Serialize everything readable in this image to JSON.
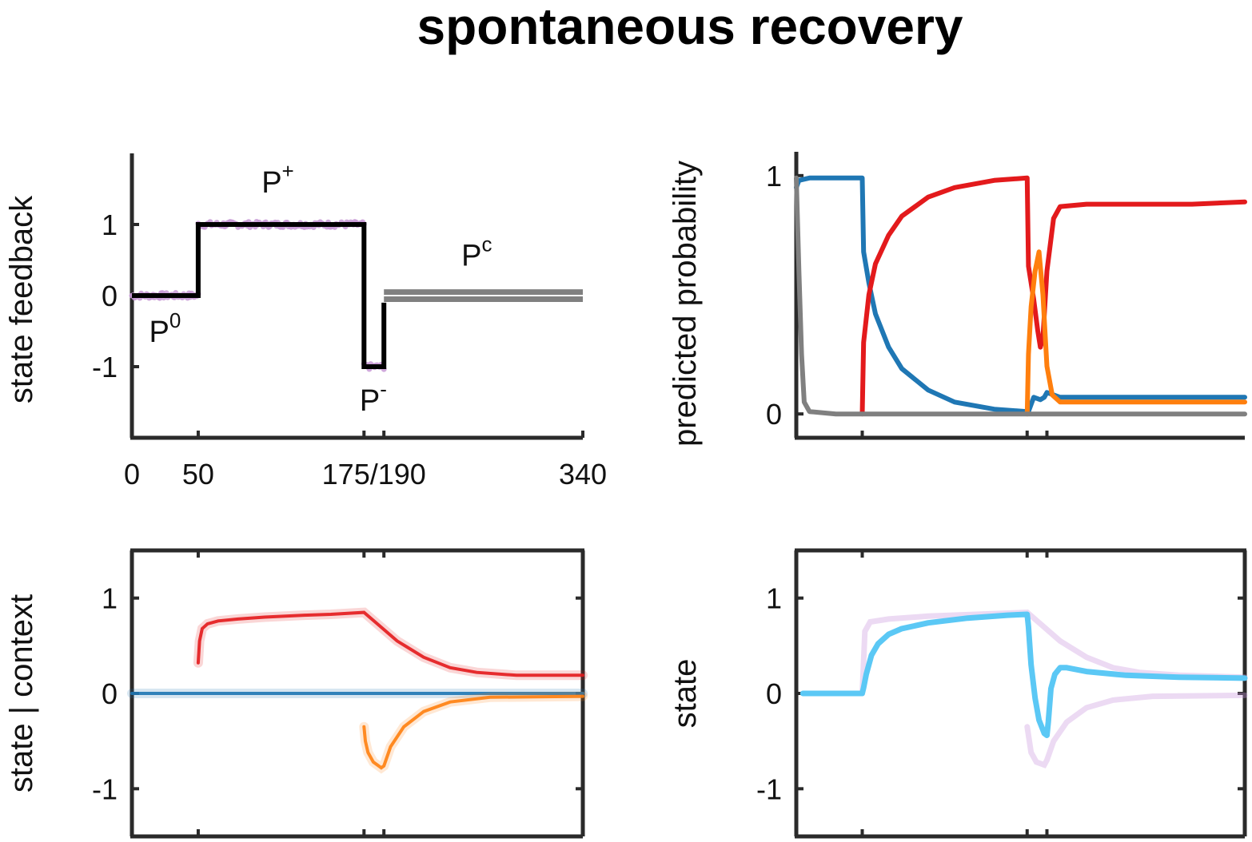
{
  "figure_title": "spontaneous recovery",
  "colors": {
    "axis": "#2a2a2a",
    "paradigm": "#000000",
    "paradigm_gray": "#808080",
    "feedback_dots": "#c89ad6",
    "blue": "#1f77b4",
    "red": "#e31a1c",
    "orange": "#ff7f0e",
    "gray": "#808080",
    "light_blue": "#5bc8f5",
    "purple": "#c994dd"
  },
  "chart_data": [
    {
      "id": "feedback",
      "type": "line",
      "ylabel": "state feedback",
      "xlim": [
        0,
        340
      ],
      "ylim": [
        -2,
        2
      ],
      "yticks": [
        1,
        0,
        -1
      ],
      "ytick_labels": [
        "1",
        "0",
        "-1"
      ],
      "xticks": [
        0,
        50,
        175,
        190,
        340
      ],
      "xtick_labels": [
        {
          "at": 0,
          "text": "0"
        },
        {
          "at": 50,
          "text": "50"
        },
        {
          "at": 182.5,
          "text": "175/190"
        },
        {
          "at": 340,
          "text": "340"
        }
      ],
      "phase_labels": [
        {
          "name": "P",
          "sup": "0",
          "x": 25,
          "y": -0.65
        },
        {
          "name": "P",
          "sup": "+",
          "x": 110,
          "y": 1.45
        },
        {
          "name": "P",
          "sup": "-",
          "x": 182,
          "y": -1.62
        },
        {
          "name": "P",
          "sup": "c",
          "x": 260,
          "y": 0.42
        }
      ],
      "series": [
        {
          "style": "paradigm",
          "x": [
            0,
            50,
            50,
            175,
            175,
            182,
            182,
            190,
            190
          ],
          "y": [
            0,
            0,
            1,
            1,
            -1,
            -1,
            -1,
            -1,
            -0.1
          ]
        },
        {
          "style": "channel",
          "x": [
            190,
            340
          ],
          "y": [
            0.05,
            0.05
          ]
        },
        {
          "style": "channel",
          "x": [
            190,
            340
          ],
          "y": [
            -0.05,
            -0.05
          ]
        },
        {
          "style": "noisy-feedback",
          "segments": [
            {
              "x": [
                0,
                50
              ],
              "y": 0
            },
            {
              "x": [
                50,
                175
              ],
              "y": 1
            },
            {
              "x": [
                175,
                190
              ],
              "y": -1
            }
          ]
        }
      ]
    },
    {
      "id": "probability",
      "type": "line",
      "ylabel": "predicted probability",
      "xlim": [
        0,
        340
      ],
      "ylim": [
        -0.1,
        1.1
      ],
      "yticks": [
        1,
        0
      ],
      "ytick_labels": [
        "1",
        "0"
      ],
      "xticks": [
        50,
        175,
        190
      ],
      "series": [
        {
          "color": "blue",
          "points": [
            [
              0,
              0.95
            ],
            [
              2,
              0.98
            ],
            [
              10,
              0.99
            ],
            [
              50,
              0.99
            ],
            [
              51,
              0.68
            ],
            [
              55,
              0.55
            ],
            [
              60,
              0.42
            ],
            [
              70,
              0.28
            ],
            [
              80,
              0.19
            ],
            [
              100,
              0.1
            ],
            [
              120,
              0.05
            ],
            [
              150,
              0.02
            ],
            [
              175,
              0.01
            ],
            [
              176,
              0.01
            ],
            [
              180,
              0.07
            ],
            [
              185,
              0.06
            ],
            [
              188,
              0.07
            ],
            [
              190,
              0.09
            ],
            [
              200,
              0.07
            ],
            [
              340,
              0.07
            ]
          ]
        },
        {
          "color": "red",
          "points": [
            [
              50,
              0
            ],
            [
              51,
              0.3
            ],
            [
              55,
              0.5
            ],
            [
              60,
              0.63
            ],
            [
              70,
              0.75
            ],
            [
              80,
              0.83
            ],
            [
              100,
              0.91
            ],
            [
              120,
              0.95
            ],
            [
              150,
              0.98
            ],
            [
              175,
              0.99
            ],
            [
              176,
              0.62
            ],
            [
              180,
              0.48
            ],
            [
              183,
              0.35
            ],
            [
              185,
              0.28
            ],
            [
              187,
              0.32
            ],
            [
              190,
              0.6
            ],
            [
              195,
              0.82
            ],
            [
              200,
              0.87
            ],
            [
              220,
              0.88
            ],
            [
              250,
              0.88
            ],
            [
              300,
              0.88
            ],
            [
              340,
              0.89
            ]
          ]
        },
        {
          "color": "orange",
          "points": [
            [
              175,
              0
            ],
            [
              176,
              0.25
            ],
            [
              178,
              0.45
            ],
            [
              181,
              0.6
            ],
            [
              184,
              0.68
            ],
            [
              187,
              0.5
            ],
            [
              190,
              0.2
            ],
            [
              194,
              0.08
            ],
            [
              200,
              0.05
            ],
            [
              250,
              0.05
            ],
            [
              340,
              0.05
            ]
          ]
        },
        {
          "color": "gray",
          "points": [
            [
              0,
              0.99
            ],
            [
              2,
              0.6
            ],
            [
              4,
              0.25
            ],
            [
              6,
              0.05
            ],
            [
              10,
              0.01
            ],
            [
              30,
              0
            ],
            [
              340,
              0
            ]
          ]
        }
      ]
    },
    {
      "id": "state-given-context",
      "type": "line",
      "ylabel": "state | context",
      "xlim": [
        0,
        340
      ],
      "ylim": [
        -1.5,
        1.5
      ],
      "yticks": [
        1,
        0,
        -1
      ],
      "ytick_labels": [
        "1",
        "0",
        "-1"
      ],
      "xticks": [
        50,
        175,
        190
      ],
      "series": [
        {
          "color": "blue",
          "points": [
            [
              0,
              0
            ],
            [
              340,
              0
            ]
          ]
        },
        {
          "color": "red",
          "points": [
            [
              50,
              0.32
            ],
            [
              51,
              0.55
            ],
            [
              53,
              0.68
            ],
            [
              57,
              0.73
            ],
            [
              65,
              0.76
            ],
            [
              80,
              0.78
            ],
            [
              100,
              0.8
            ],
            [
              130,
              0.82
            ],
            [
              150,
              0.83
            ],
            [
              175,
              0.85
            ],
            [
              185,
              0.73
            ],
            [
              200,
              0.55
            ],
            [
              220,
              0.38
            ],
            [
              240,
              0.27
            ],
            [
              260,
              0.22
            ],
            [
              290,
              0.19
            ],
            [
              340,
              0.19
            ]
          ]
        },
        {
          "color": "orange",
          "points": [
            [
              175,
              -0.35
            ],
            [
              176,
              -0.5
            ],
            [
              178,
              -0.62
            ],
            [
              182,
              -0.72
            ],
            [
              188,
              -0.78
            ],
            [
              190,
              -0.76
            ],
            [
              195,
              -0.56
            ],
            [
              205,
              -0.35
            ],
            [
              220,
              -0.19
            ],
            [
              240,
              -0.09
            ],
            [
              270,
              -0.04
            ],
            [
              340,
              -0.03
            ]
          ]
        }
      ]
    },
    {
      "id": "state",
      "type": "line",
      "ylabel": "state",
      "xlim": [
        0,
        340
      ],
      "ylim": [
        -1.5,
        1.5
      ],
      "yticks": [
        1,
        0,
        -1
      ],
      "ytick_labels": [
        "1",
        "0",
        "-1"
      ],
      "xticks": [
        50,
        175,
        190
      ],
      "series": [
        {
          "color": "light_blue",
          "points": [
            [
              5,
              0
            ],
            [
              50,
              0
            ],
            [
              51,
              0.06
            ],
            [
              53,
              0.2
            ],
            [
              57,
              0.4
            ],
            [
              62,
              0.52
            ],
            [
              70,
              0.62
            ],
            [
              80,
              0.68
            ],
            [
              100,
              0.74
            ],
            [
              130,
              0.79
            ],
            [
              160,
              0.82
            ],
            [
              175,
              0.83
            ],
            [
              176,
              0.7
            ],
            [
              178,
              0.3
            ],
            [
              181,
              -0.05
            ],
            [
              184,
              -0.28
            ],
            [
              188,
              -0.42
            ],
            [
              190,
              -0.44
            ],
            [
              191,
              -0.3
            ],
            [
              193,
              0.05
            ],
            [
              196,
              0.2
            ],
            [
              200,
              0.27
            ],
            [
              205,
              0.27
            ],
            [
              220,
              0.23
            ],
            [
              250,
              0.19
            ],
            [
              290,
              0.17
            ],
            [
              340,
              0.16
            ]
          ]
        },
        {
          "color": "purple",
          "faint": true,
          "points": [
            [
              50,
              0
            ],
            [
              52,
              0.65
            ],
            [
              56,
              0.75
            ],
            [
              70,
              0.78
            ],
            [
              100,
              0.81
            ],
            [
              175,
              0.85
            ],
            [
              185,
              0.73
            ],
            [
              200,
              0.55
            ],
            [
              220,
              0.38
            ],
            [
              240,
              0.27
            ],
            [
              260,
              0.22
            ],
            [
              290,
              0.19
            ],
            [
              340,
              0.17
            ]
          ]
        },
        {
          "color": "purple",
          "faint": true,
          "points": [
            [
              175,
              -0.35
            ],
            [
              178,
              -0.62
            ],
            [
              182,
              -0.72
            ],
            [
              188,
              -0.75
            ],
            [
              190,
              -0.7
            ],
            [
              195,
              -0.5
            ],
            [
              205,
              -0.3
            ],
            [
              220,
              -0.15
            ],
            [
              240,
              -0.07
            ],
            [
              270,
              -0.03
            ],
            [
              340,
              -0.02
            ]
          ]
        }
      ]
    }
  ]
}
